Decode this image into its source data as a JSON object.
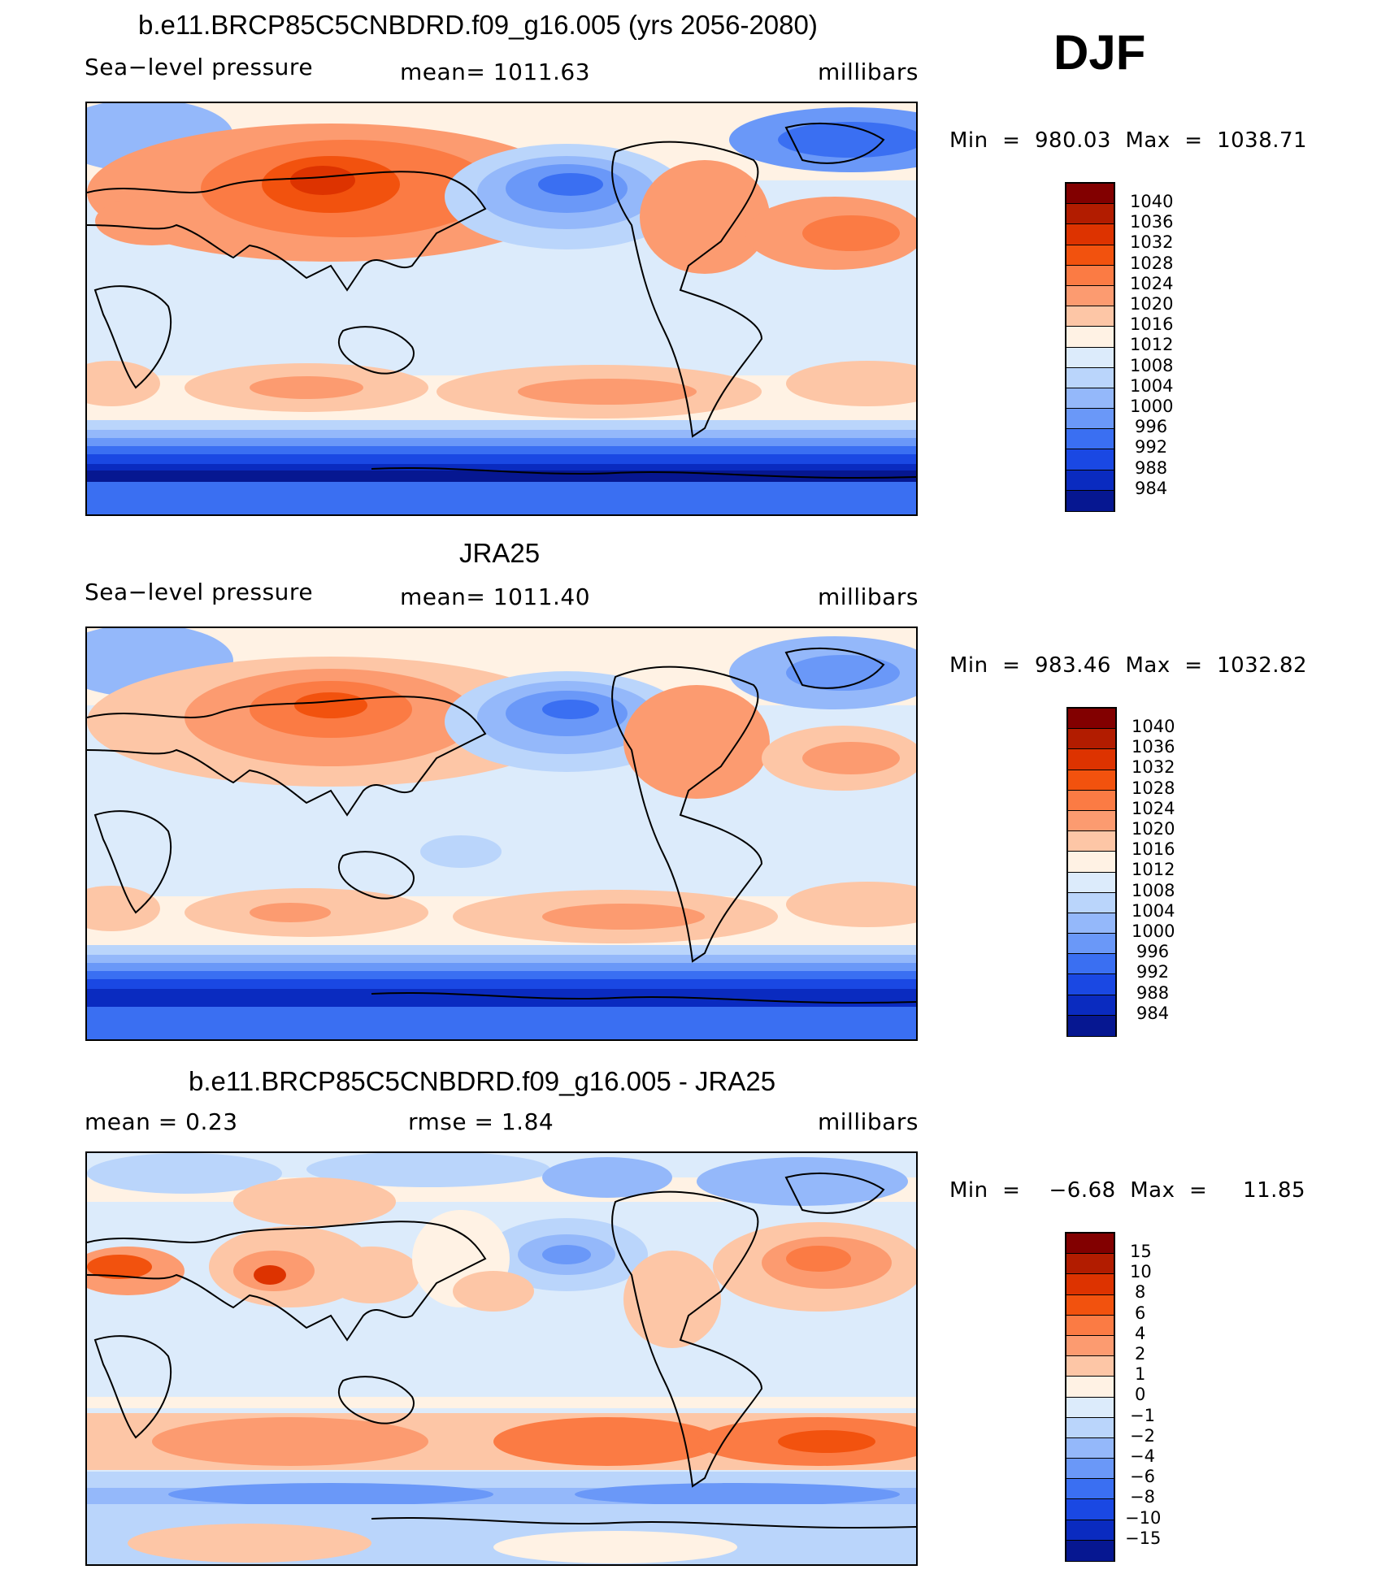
{
  "season": "DJF",
  "panels": [
    {
      "title": "b.e11.BRCP85C5CNBDRD.f09_g16.005 (yrs 2056-2080)",
      "left_label": "Sea−level pressure",
      "center_label": "mean=  1011.63",
      "units": "millibars",
      "minmax": "Min  =  980.03  Max  =  1038.71",
      "colorbar_labels": [
        "1040",
        "1036",
        "1032",
        "1028",
        "1024",
        "1020",
        "1016",
        "1012",
        "1008",
        "1004",
        "1000",
        "996",
        "992",
        "988",
        "984"
      ]
    },
    {
      "title": "JRA25",
      "left_label": "Sea−level pressure",
      "center_label": "mean=  1011.40",
      "units": "millibars",
      "minmax": "Min  =  983.46  Max  =  1032.82",
      "colorbar_labels": [
        "1040",
        "1036",
        "1032",
        "1028",
        "1024",
        "1020",
        "1016",
        "1012",
        "1008",
        "1004",
        "1000",
        "996",
        "992",
        "988",
        "984"
      ]
    },
    {
      "title": "b.e11.BRCP85C5CNBDRD.f09_g16.005 - JRA25",
      "left_label": "mean  =     0.23",
      "center_label": "rmse  =     1.84",
      "units": "millibars",
      "minmax": "Min  =    −6.68  Max  =     11.85",
      "colorbar_labels": [
        "15",
        "10",
        "8",
        "6",
        "4",
        "2",
        "1",
        "0",
        "−1",
        "−2",
        "−4",
        "−6",
        "−8",
        "−10",
        "−15"
      ]
    }
  ],
  "colors": [
    "#820000",
    "#b21c00",
    "#dd3300",
    "#f2520e",
    "#fb7b44",
    "#fc9b70",
    "#fdc6a6",
    "#fff2e4",
    "#dcebfb",
    "#bad5fb",
    "#94b8fa",
    "#6a98f8",
    "#3a6ff2",
    "#1a48e3",
    "#0a2bc0",
    "#061791"
  ]
}
